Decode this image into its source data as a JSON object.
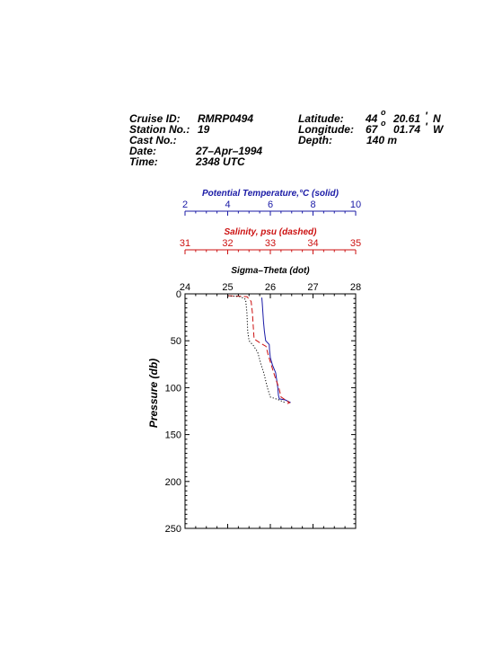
{
  "header": {
    "cruise_label": "Cruise ID:",
    "cruise_value": "RMRP0494",
    "station_label": "Station No.:",
    "station_value": "19",
    "cast_label": "Cast No.:",
    "cast_value": "",
    "date_label": "Date:",
    "date_value": "27–Apr–1994",
    "time_label": "Time:",
    "time_value": "2348 UTC",
    "lat_label": "Latitude:",
    "lat_deg": "44",
    "lat_min": "20.61",
    "lat_hemi": "N",
    "lon_label": "Longitude:",
    "lon_deg": "67",
    "lon_min": "01.74",
    "lon_hemi": "W",
    "depth_label": "Depth:",
    "depth_value": "140 m",
    "degree_mark": "o",
    "minute_mark": "'"
  },
  "chart_data": {
    "type": "line",
    "ylabel": "Pressure (db)",
    "ylim": [
      0,
      250
    ],
    "y_inverted": true,
    "yticks": [
      "0",
      "50",
      "100",
      "150",
      "200",
      "250"
    ],
    "axes": [
      {
        "key": "temp",
        "title": "Potential Temperature,°C (solid)",
        "xlim": [
          2,
          10
        ],
        "ticks": [
          "2",
          "4",
          "6",
          "8",
          "10"
        ],
        "color": "#1a1aa6",
        "dash": "solid"
      },
      {
        "key": "sal",
        "title": "Salinity, psu  (dashed)",
        "xlim": [
          31,
          35
        ],
        "ticks": [
          "31",
          "32",
          "33",
          "34",
          "35"
        ],
        "color": "#cc1111",
        "dash": "dashed"
      },
      {
        "key": "sigma",
        "title": "Sigma–Theta (dot)",
        "xlim": [
          24,
          28
        ],
        "ticks": [
          "24",
          "25",
          "26",
          "27",
          "28"
        ],
        "color": "#000000",
        "dash": "dotted"
      }
    ],
    "series": [
      {
        "axis": "temp",
        "points": [
          [
            5.6,
            4
          ],
          [
            5.62,
            10
          ],
          [
            5.65,
            20
          ],
          [
            5.68,
            30
          ],
          [
            5.72,
            40
          ],
          [
            5.78,
            50
          ],
          [
            5.95,
            54
          ],
          [
            5.96,
            60
          ],
          [
            6.0,
            68
          ],
          [
            6.1,
            76
          ],
          [
            6.25,
            84
          ],
          [
            6.3,
            92
          ],
          [
            6.35,
            100
          ],
          [
            6.38,
            108
          ],
          [
            6.42,
            112
          ],
          [
            6.7,
            113
          ],
          [
            6.95,
            116
          ]
        ]
      },
      {
        "axis": "sal",
        "points": [
          [
            32.0,
            2
          ],
          [
            32.45,
            3
          ],
          [
            32.55,
            8
          ],
          [
            32.58,
            20
          ],
          [
            32.6,
            35
          ],
          [
            32.62,
            48
          ],
          [
            32.75,
            52
          ],
          [
            32.9,
            56
          ],
          [
            32.95,
            65
          ],
          [
            33.05,
            80
          ],
          [
            33.12,
            90
          ],
          [
            33.2,
            100
          ],
          [
            33.25,
            110
          ],
          [
            33.45,
            116
          ],
          [
            33.35,
            118
          ]
        ]
      },
      {
        "axis": "sigma",
        "points": [
          [
            25.0,
            2
          ],
          [
            25.3,
            3
          ],
          [
            25.42,
            6
          ],
          [
            25.45,
            20
          ],
          [
            25.47,
            40
          ],
          [
            25.5,
            50
          ],
          [
            25.6,
            55
          ],
          [
            25.7,
            62
          ],
          [
            25.78,
            75
          ],
          [
            25.85,
            85
          ],
          [
            25.93,
            100
          ],
          [
            26.0,
            110
          ],
          [
            26.2,
            113
          ],
          [
            26.35,
            116
          ]
        ]
      }
    ]
  }
}
